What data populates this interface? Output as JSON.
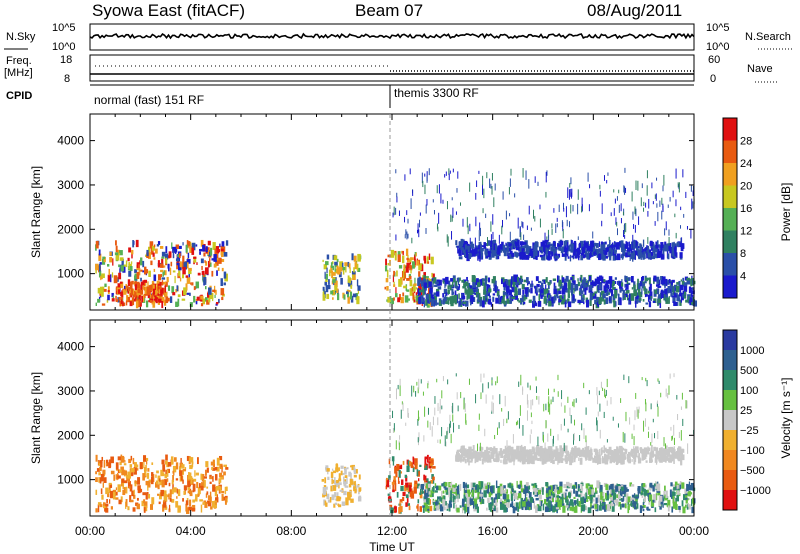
{
  "header": {
    "station": "Syowa East (fitACF)",
    "beam": "Beam 07",
    "date": "08/Aug/2011"
  },
  "strip_labels": {
    "nsky": "N.Sky",
    "nsky_ticks": [
      "10^5",
      "10^0"
    ],
    "nsearch": "N.Search",
    "nsearch_ticks": [
      "10^5",
      "10^0"
    ],
    "freq": "Freq.",
    "freq_unit": "[MHz]",
    "freq_ticks": [
      "18",
      "8"
    ],
    "nave": "Nave",
    "nave_ticks": [
      "60",
      "0"
    ],
    "cpid": "CPID",
    "cpid_modes": [
      "normal (fast) 151 RF",
      "themis 3300 RF"
    ]
  },
  "x_axis": {
    "label": "Time UT",
    "ticks": [
      "00:00",
      "04:00",
      "08:00",
      "12:00",
      "16:00",
      "20:00",
      "00:00"
    ],
    "range_hours": [
      0,
      24
    ]
  },
  "colors": {
    "power": [
      "#1a1acc",
      "#2a4fa8",
      "#2f8060",
      "#55b055",
      "#c8c820",
      "#f0a020",
      "#e85a10",
      "#e01010"
    ],
    "velocity": [
      "#2a3aa0",
      "#2e6090",
      "#2f8a6a",
      "#66c040",
      "#c8c8c8",
      "#f0b030",
      "#f08820",
      "#e85a10",
      "#e01010"
    ]
  },
  "chart_data": [
    {
      "type": "heatmap",
      "name": "Power",
      "ylabel": "Slant Range [km]",
      "xlabel": "",
      "yticks": [
        "1000",
        "2000",
        "3000",
        "4000"
      ],
      "ylim": [
        180,
        4600
      ],
      "xlim": [
        0,
        24
      ],
      "colorbar_label": "Power [dB]",
      "colorbar_ticks": [
        "4",
        "8",
        "12",
        "16",
        "20",
        "24",
        "28"
      ],
      "regions": [
        {
          "t": [
            0.2,
            5.4
          ],
          "r": [
            300,
            1700
          ],
          "levels": [
            0,
            1,
            3,
            4,
            5,
            6,
            7
          ]
        },
        {
          "t": [
            1.0,
            3.0
          ],
          "r": [
            300,
            800
          ],
          "levels": [
            5,
            6,
            7
          ]
        },
        {
          "t": [
            9.2,
            10.7
          ],
          "r": [
            400,
            1400
          ],
          "levels": [
            1,
            3,
            4,
            5
          ]
        },
        {
          "t": [
            11.7,
            13.6
          ],
          "r": [
            300,
            1500
          ],
          "levels": [
            3,
            4,
            5,
            6,
            7
          ]
        },
        {
          "t": [
            14.5,
            23.5
          ],
          "r": [
            1350,
            1700
          ],
          "levels": [
            0,
            1
          ]
        },
        {
          "t": [
            13.0,
            24.0
          ],
          "r": [
            300,
            900
          ],
          "levels": [
            0,
            1,
            2
          ]
        }
      ]
    },
    {
      "type": "heatmap",
      "name": "Velocity",
      "ylabel": "Slant Range [km]",
      "xlabel": "Time UT",
      "yticks": [
        "1000",
        "2000",
        "3000",
        "4000"
      ],
      "ylim": [
        180,
        4600
      ],
      "xlim": [
        0,
        24
      ],
      "colorbar_label": "Velocity [m s⁻¹]",
      "colorbar_ticks": [
        "1000",
        "500",
        "100",
        "25",
        "−25",
        "−100",
        "−500",
        "−1000"
      ],
      "regions": [
        {
          "t": [
            0.2,
            5.4
          ],
          "r": [
            300,
            1500
          ],
          "levels": [
            5,
            6,
            7
          ]
        },
        {
          "t": [
            9.2,
            10.7
          ],
          "r": [
            400,
            1300
          ],
          "levels": [
            4,
            5
          ]
        },
        {
          "t": [
            11.7,
            13.6
          ],
          "r": [
            300,
            1500
          ],
          "levels": [
            2,
            6,
            7,
            8
          ]
        },
        {
          "t": [
            14.5,
            23.5
          ],
          "r": [
            1400,
            1700
          ],
          "levels": [
            4
          ]
        },
        {
          "t": [
            13.0,
            24.0
          ],
          "r": [
            300,
            900
          ],
          "levels": [
            1,
            2,
            3,
            4
          ]
        }
      ]
    }
  ]
}
